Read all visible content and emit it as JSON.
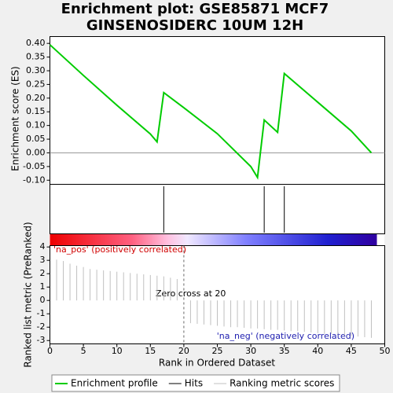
{
  "chart_data": [
    {
      "type": "line",
      "title": [
        "Enrichment plot: GSE85871 MCF7",
        "GINSENOSIDERC 10UM 12H"
      ],
      "ylabel": "Enrichment score (ES)",
      "xlim": [
        0,
        50
      ],
      "ylim": [
        -0.115,
        0.425
      ],
      "yticks": [
        {
          "value": 0.4,
          "label": "0.40"
        },
        {
          "value": 0.35,
          "label": "0.35"
        },
        {
          "value": 0.3,
          "label": "0.30"
        },
        {
          "value": 0.25,
          "label": "0.25"
        },
        {
          "value": 0.2,
          "label": "0.20"
        },
        {
          "value": 0.15,
          "label": "0.15"
        },
        {
          "value": 0.1,
          "label": "0.10"
        },
        {
          "value": 0.05,
          "label": "0.05"
        },
        {
          "value": 0,
          "label": "0.00"
        },
        {
          "value": -0.05,
          "label": "-0.05"
        },
        {
          "value": -0.1,
          "label": "-0.10"
        }
      ],
      "x": [
        0,
        5,
        10,
        15,
        16,
        17,
        20,
        25,
        30,
        31,
        32,
        34,
        35,
        40,
        45,
        48
      ],
      "series": [
        {
          "name": "Enrichment profile",
          "color": "#00cc00",
          "values": [
            0.395,
            0.283,
            0.174,
            0.069,
            0.04,
            0.22,
            0.165,
            0.07,
            -0.05,
            -0.09,
            0.12,
            0.075,
            0.29,
            0.185,
            0.08,
            0.0
          ]
        }
      ]
    },
    {
      "type": "hits",
      "name": "Hits",
      "color": "#000000",
      "xlim": [
        0,
        50
      ],
      "x": [
        17,
        32,
        35
      ]
    },
    {
      "type": "bar",
      "name": "Ranking metric scores",
      "color": "#c0c0c0",
      "xlabel": "Rank in Ordered Dataset",
      "ylabel": "Ranked list metric (PreRanked)",
      "xlim": [
        0,
        50
      ],
      "xticks": [
        0,
        5,
        10,
        15,
        20,
        25,
        30,
        35,
        40,
        45,
        50
      ],
      "ylim": [
        -3.25,
        4.1
      ],
      "yticks": [
        4,
        3,
        2,
        1,
        0,
        -1,
        -2,
        -3
      ],
      "x": [
        1,
        2,
        3,
        4,
        5,
        6,
        7,
        8,
        9,
        10,
        11,
        12,
        13,
        14,
        15,
        16,
        17,
        18,
        19,
        21,
        22,
        23,
        24,
        25,
        26,
        27,
        28,
        29,
        30,
        31,
        32,
        33,
        34,
        35,
        36,
        37,
        38,
        39,
        40,
        41,
        42,
        43,
        44,
        45,
        46,
        47,
        48
      ],
      "values": [
        3.05,
        2.95,
        2.75,
        2.6,
        2.5,
        2.35,
        2.3,
        2.25,
        2.2,
        2.15,
        2.1,
        2.05,
        2.0,
        1.95,
        1.9,
        1.85,
        1.8,
        1.7,
        1.6,
        -1.7,
        -1.75,
        -1.8,
        -1.85,
        -1.9,
        -1.95,
        -2.0,
        -2.0,
        -2.05,
        -2.1,
        -2.1,
        -2.15,
        -2.2,
        -2.2,
        -2.25,
        -2.3,
        -2.3,
        -2.35,
        -2.4,
        -2.45,
        -2.5,
        -2.5,
        -2.55,
        -2.6,
        -2.65,
        -2.7,
        -2.75,
        -2.8
      ],
      "zero_cross": 20,
      "annotations": [
        "'na_pos' (positively correlated)",
        "Zero cross at 20",
        "'na_neg' (negatively correlated)"
      ]
    }
  ]
}
